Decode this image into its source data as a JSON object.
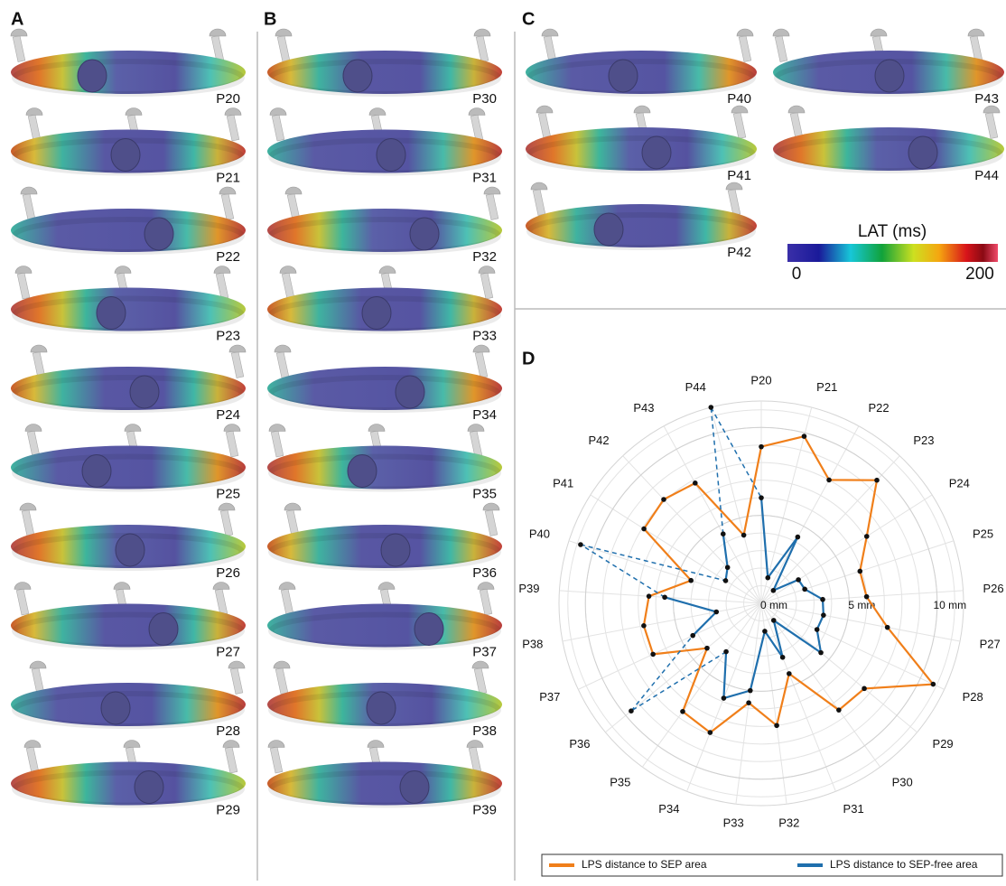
{
  "panels": {
    "A": {
      "label": "A",
      "items": [
        "P20",
        "P21",
        "P22",
        "P23",
        "P24",
        "P25",
        "P26",
        "P27",
        "P28",
        "P29"
      ]
    },
    "B": {
      "label": "B",
      "items": [
        "P30",
        "P31",
        "P32",
        "P33",
        "P34",
        "P35",
        "P36",
        "P37",
        "P38",
        "P39"
      ]
    },
    "C": {
      "label": "C",
      "items": [
        "P40",
        "P41",
        "P42",
        "P43",
        "P44"
      ]
    },
    "D": {
      "label": "D"
    }
  },
  "colorbar": {
    "title": "LAT (ms)",
    "ticks": [
      0,
      200
    ]
  },
  "chart_data": {
    "type": "radar",
    "categories": [
      "P20",
      "P21",
      "P22",
      "P23",
      "P24",
      "P25",
      "P26",
      "P27",
      "P28",
      "P29",
      "P30",
      "P31",
      "P32",
      "P33",
      "P34",
      "P35",
      "P36",
      "P37",
      "P38",
      "P39",
      "P40",
      "P41",
      "P42",
      "P43",
      "P44"
    ],
    "series": [
      {
        "name": "LPS distance to SEP area",
        "color": "#f07f1a",
        "values": [
          8.9,
          9.8,
          8.0,
          9.6,
          7.1,
          5.9,
          6.0,
          7.3,
          10.8,
          7.6,
          7.5,
          4.3,
          7.0,
          5.7,
          7.9,
          7.6,
          4.0,
          6.8,
          6.8,
          6.4,
          4.2,
          7.9,
          8.1,
          7.8,
          4.0
        ]
      },
      {
        "name": "LPS distance to SEP-free area",
        "color": "#1f6fad",
        "values": [
          6.0,
          1.5,
          4.3,
          1.0,
          2.5,
          2.6,
          3.5,
          3.6,
          3.5,
          4.4,
          1.2,
          3.3,
          1.6,
          5.0,
          5.8,
          3.4,
          9.6,
          4.3,
          2.6,
          5.5,
          10.8,
          2.4,
          2.8,
          4.5,
          11.5
        ],
        "dashed": [
          "P36",
          "P40",
          "P44"
        ]
      }
    ],
    "rlim": [
      0,
      11.5
    ],
    "rticks": [
      {
        "value": 0,
        "label": "0 mm"
      },
      {
        "value": 5,
        "label": "5 mm"
      },
      {
        "value": 10,
        "label": "10 mm"
      }
    ],
    "rgrid_step": 1,
    "grid": true,
    "legend": "bottom"
  }
}
